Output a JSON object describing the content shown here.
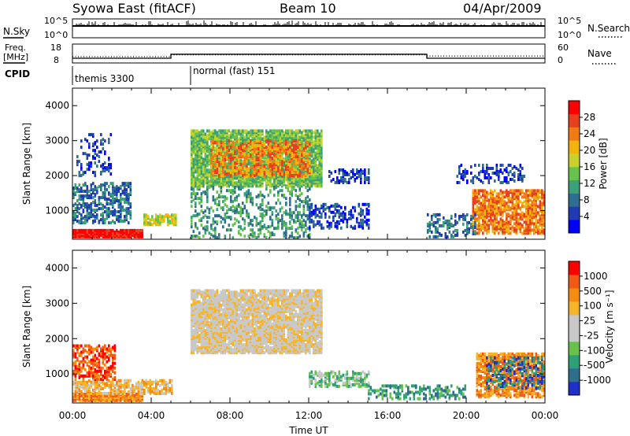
{
  "header": {
    "title": "Syowa East (fitACF)",
    "beam": "Beam 10",
    "date": "04/Apr/2009"
  },
  "labels": {
    "nsky": "N.Sky",
    "nsearch": "N.Search",
    "freq_line1": "Freq.",
    "freq_line2": "[MHz]",
    "nave": "Nave",
    "cpid": "CPID",
    "nsky_tick_top": "10^5",
    "nsky_tick_bottom": "10^0",
    "freq_tick_top": "18",
    "freq_tick_bottom": "8",
    "nave_tick_top": "60",
    "nave_tick_bottom": "0"
  },
  "cpid_segments": [
    {
      "label": "themis 3300",
      "start_hour": 0
    },
    {
      "label": "normal (fast) 151",
      "start_hour": 6
    }
  ],
  "colors": {
    "power_scale": [
      "#0000ff",
      "#1e3cb4",
      "#2e6e8e",
      "#3aa07a",
      "#66c24a",
      "#c8d22a",
      "#f2b40a",
      "#f07a14",
      "#e8401e",
      "#ff0000"
    ],
    "velocity_scale": [
      "#ff0000",
      "#f05a14",
      "#f48c10",
      "#f6b428",
      "#c8c8c8",
      "#c8c8c8",
      "#66c24a",
      "#2ea078",
      "#2e6e8e",
      "#2030c8"
    ]
  },
  "chart_data": [
    {
      "type": "line",
      "name": "nsky-nsearch",
      "x_range": [
        0,
        24
      ],
      "y_scale": "log",
      "ylim": [
        1,
        100000
      ]
    },
    {
      "type": "line",
      "name": "freq-nave",
      "x_range": [
        0,
        24
      ],
      "ylim": [
        8,
        18
      ],
      "y2lim": [
        0,
        60
      ],
      "freq_steps": [
        {
          "start": 0,
          "end": 5,
          "value": 10.5
        },
        {
          "start": 5,
          "end": 18,
          "value": 12.6
        },
        {
          "start": 18,
          "end": 24,
          "value": 10.5
        }
      ],
      "nave_steps": [
        {
          "start": 0,
          "end": 5,
          "value": 20
        },
        {
          "start": 5,
          "end": 18,
          "value": 26
        },
        {
          "start": 18,
          "end": 24,
          "value": 22
        }
      ]
    },
    {
      "type": "heatmap",
      "name": "power",
      "xlabel": "",
      "ylabel": "Slant Range [km]",
      "xlim": [
        0,
        24
      ],
      "ylim": [
        180,
        4500
      ],
      "yticks": [
        "1000",
        "2000",
        "3000",
        "4000"
      ],
      "colorbar_label": "Power [dB]",
      "colorbar_ticks": [
        "4",
        "8",
        "12",
        "16",
        "20",
        "24",
        "28"
      ],
      "blobs": [
        {
          "t0": 0.0,
          "t1": 3.6,
          "r0": 250,
          "r1": 450,
          "level": 9,
          "density": 0.9
        },
        {
          "t0": 3.6,
          "t1": 5.2,
          "r0": 600,
          "r1": 900,
          "level": 5,
          "density": 0.7
        },
        {
          "t0": 0.0,
          "t1": 3.0,
          "r0": 650,
          "r1": 1800,
          "level": 2,
          "density": 0.45
        },
        {
          "t0": 0.2,
          "t1": 2.0,
          "r0": 2000,
          "r1": 3200,
          "level": 1,
          "density": 0.2
        },
        {
          "t0": 6.0,
          "t1": 12.6,
          "r0": 1700,
          "r1": 3300,
          "level": 4,
          "density": 0.8
        },
        {
          "t0": 7.0,
          "t1": 12.0,
          "r0": 2000,
          "r1": 3000,
          "level": 7,
          "density": 0.45
        },
        {
          "t0": 6.0,
          "t1": 12.0,
          "r0": 220,
          "r1": 1700,
          "level": 3,
          "density": 0.25
        },
        {
          "t0": 12.0,
          "t1": 15.0,
          "r0": 500,
          "r1": 1200,
          "level": 1,
          "density": 0.35
        },
        {
          "t0": 13.0,
          "t1": 15.0,
          "r0": 1800,
          "r1": 2200,
          "level": 1,
          "density": 0.35
        },
        {
          "t0": 20.3,
          "t1": 24.0,
          "r0": 350,
          "r1": 1600,
          "level": 7,
          "density": 0.6
        },
        {
          "t0": 18.0,
          "t1": 20.5,
          "r0": 250,
          "r1": 900,
          "level": 2,
          "density": 0.35
        },
        {
          "t0": 19.5,
          "t1": 23.0,
          "r0": 1800,
          "r1": 2300,
          "level": 1,
          "density": 0.3
        }
      ]
    },
    {
      "type": "heatmap",
      "name": "velocity",
      "xlabel": "Time UT",
      "ylabel": "Slant Range [km]",
      "xlim": [
        0,
        24
      ],
      "ylim": [
        180,
        4500
      ],
      "xticks": [
        "00:00",
        "04:00",
        "08:00",
        "12:00",
        "16:00",
        "20:00",
        "00:00"
      ],
      "yticks": [
        "1000",
        "2000",
        "3000",
        "4000"
      ],
      "colorbar_label": "Velocity [m s⁻¹]",
      "colorbar_ticks": [
        "1000",
        "500",
        "100",
        "25",
        "-25",
        "-100",
        "-500",
        "-1000"
      ],
      "blobs": [
        {
          "t0": 0.0,
          "t1": 3.6,
          "r0": 250,
          "r1": 450,
          "level": 2,
          "density": 0.9
        },
        {
          "t0": 0.0,
          "t1": 5.0,
          "r0": 450,
          "r1": 850,
          "level": 3,
          "density": 0.6
        },
        {
          "t0": 0.0,
          "t1": 2.2,
          "r0": 850,
          "r1": 1800,
          "level": 1,
          "density": 0.45
        },
        {
          "t0": 6.0,
          "t1": 12.6,
          "r0": 1600,
          "r1": 3400,
          "level": 4,
          "density": 0.8
        },
        {
          "t0": 12.0,
          "t1": 15.0,
          "r0": 650,
          "r1": 1100,
          "level": 6,
          "density": 0.5
        },
        {
          "t0": 15.0,
          "t1": 20.0,
          "r0": 300,
          "r1": 700,
          "level": 7,
          "density": 0.35
        },
        {
          "t0": 20.5,
          "t1": 24.0,
          "r0": 350,
          "r1": 1600,
          "level": 2,
          "density": 0.6
        },
        {
          "t0": 21.0,
          "t1": 24.0,
          "r0": 600,
          "r1": 1500,
          "level": 8,
          "density": 0.3
        }
      ]
    }
  ]
}
